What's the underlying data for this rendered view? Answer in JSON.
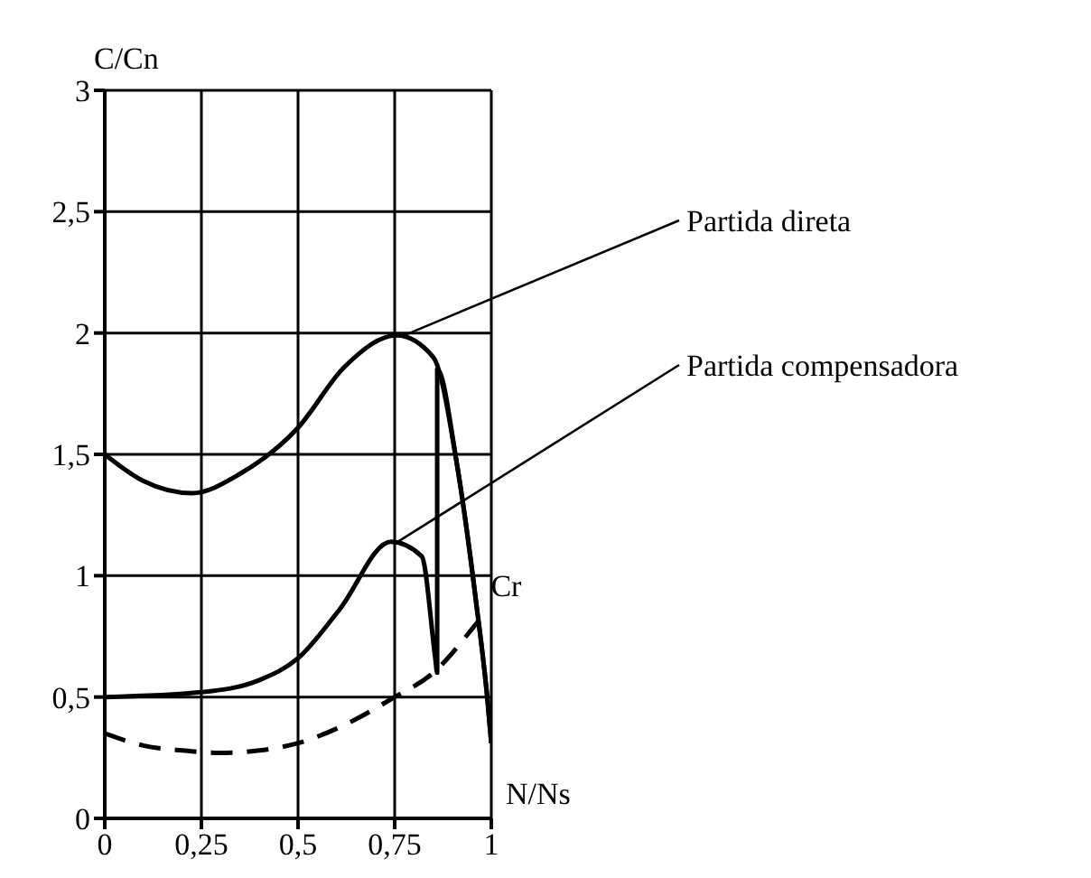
{
  "chart_data": {
    "type": "line",
    "xlabel": "N/Ns",
    "ylabel": "C/Cn",
    "xlim": [
      0,
      1
    ],
    "ylim": [
      0,
      3
    ],
    "xticks": [
      0,
      {
        "value": 0.25,
        "label": "0,25"
      },
      {
        "value": 0.5,
        "label": "0,5"
      },
      {
        "value": 0.75,
        "label": "0,75"
      },
      1
    ],
    "yticks": [
      0,
      {
        "value": 0.5,
        "label": "0,5"
      },
      1,
      {
        "value": 1.5,
        "label": "1,5"
      },
      2,
      {
        "value": 2.5,
        "label": "2,5"
      },
      3
    ],
    "grid": true,
    "legend": false,
    "marker": "none",
    "series": [
      {
        "name": "Partida direta",
        "color": "#000000",
        "line_style": "solid",
        "x": [
          0,
          0.1,
          0.226,
          0.35,
          0.5,
          0.62,
          0.755,
          0.85,
          0.91,
          0.96,
          0.99,
          1
        ],
        "values": [
          1.5,
          1.39,
          1.34,
          1.42,
          1.61,
          1.86,
          1.99,
          1.9,
          1.47,
          0.9,
          0.49,
          0.31
        ]
      },
      {
        "name": "Partida compensadora",
        "color": "#000000",
        "line_style": "solid",
        "x": [
          0,
          0.25,
          0.4,
          0.5,
          0.607,
          0.74,
          0.82,
          0.855,
          0.86,
          0.86,
          0.91,
          0.96,
          0.99,
          1
        ],
        "values": [
          0.5,
          0.52,
          0.57,
          0.66,
          0.86,
          1.14,
          1.08,
          0.66,
          0.6,
          1.85,
          1.47,
          0.9,
          0.49,
          0.31
        ]
      },
      {
        "name": "Cr",
        "color": "#000000",
        "line_style": "dashed",
        "x": [
          0,
          0.1,
          0.2,
          0.3,
          0.4,
          0.5,
          0.6,
          0.75,
          0.85,
          0.95,
          0.98
        ],
        "values": [
          0.35,
          0.3,
          0.28,
          0.27,
          0.28,
          0.31,
          0.37,
          0.5,
          0.6,
          0.78,
          0.84
        ]
      }
    ]
  }
}
